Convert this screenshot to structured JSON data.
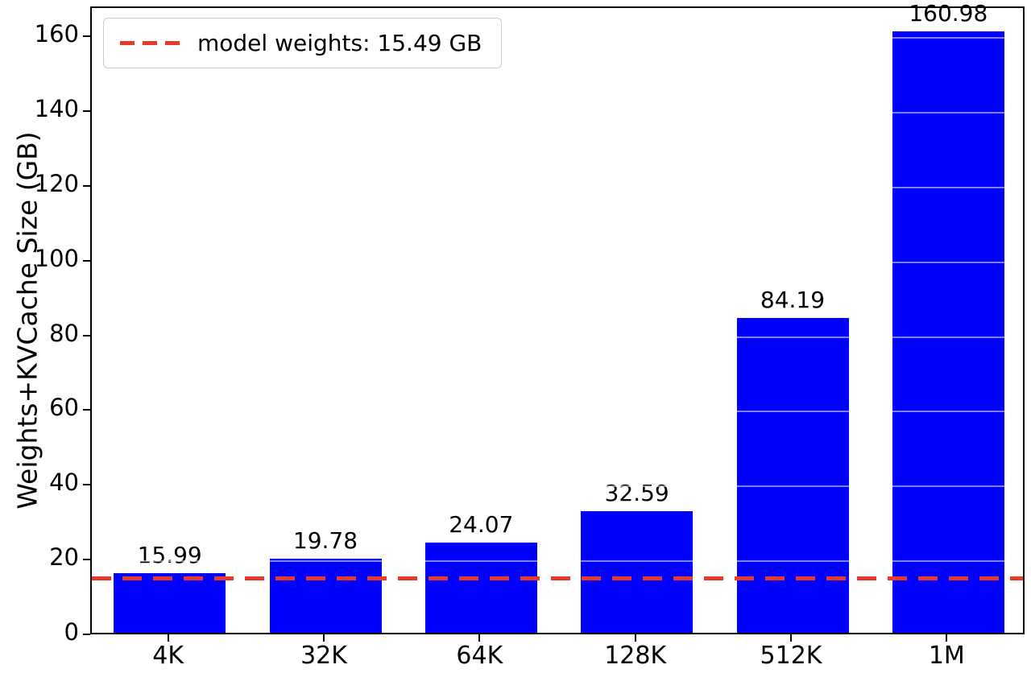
{
  "chart_data": {
    "type": "bar",
    "title": "",
    "categories": [
      "4K",
      "32K",
      "64K",
      "128K",
      "512K",
      "1M"
    ],
    "values": [
      15.99,
      19.78,
      24.07,
      32.59,
      84.19,
      160.98
    ],
    "value_labels": [
      "15.99",
      "19.78",
      "24.07",
      "32.59",
      "84.19",
      "160.98"
    ],
    "bar_color": "#0000ff",
    "xlabel": "",
    "ylabel": "Weights+KVCache Size (GB)",
    "ylim": [
      0,
      168
    ],
    "yticks": [
      0,
      20,
      40,
      60,
      80,
      100,
      120,
      140,
      160
    ],
    "grid": false,
    "legend_position": "upper left",
    "reference_line": {
      "value": 15.49,
      "color": "#e8392a",
      "style": "dashed",
      "label": "model weights: 15.49 GB"
    }
  }
}
